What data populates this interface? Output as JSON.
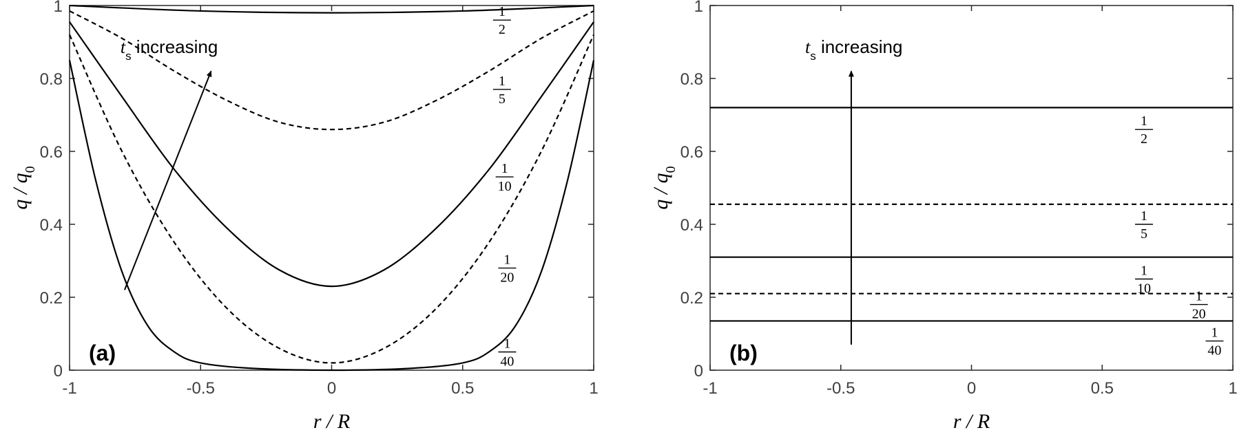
{
  "chart_data": [
    {
      "type": "line",
      "panel_label": "(a)",
      "xlabel": "r / R",
      "ylabel": "q / q0",
      "xlim": [
        -1,
        1
      ],
      "ylim": [
        0,
        1
      ],
      "xticks": [
        "-1",
        "-0.5",
        "0",
        "0.5",
        "1"
      ],
      "yticks": [
        "0",
        "0.2",
        "0.4",
        "0.6",
        "0.8",
        "1"
      ],
      "annotation": {
        "symbol": "t",
        "subscript": "s",
        "text": "increasing",
        "arrow_from": [
          -0.79,
          0.22
        ],
        "arrow_to": [
          -0.46,
          0.82
        ]
      },
      "series": [
        {
          "name": "1/2",
          "dash": "solid",
          "x": [
            -1,
            -0.5,
            0,
            0.5,
            1
          ],
          "y": [
            1.0,
            0.985,
            0.98,
            0.985,
            1.0
          ],
          "label": {
            "num": "1",
            "den": "2",
            "at": [
              0.65,
              0.96
            ]
          }
        },
        {
          "name": "1/5",
          "dash": "dashed",
          "x": [
            -1,
            -0.8,
            -0.6,
            -0.4,
            -0.2,
            0,
            0.2,
            0.4,
            0.6,
            0.8,
            1
          ],
          "y": [
            0.985,
            0.91,
            0.82,
            0.74,
            0.68,
            0.66,
            0.68,
            0.74,
            0.82,
            0.91,
            0.985
          ],
          "label": {
            "num": "1",
            "den": "5",
            "at": [
              0.65,
              0.77
            ]
          }
        },
        {
          "name": "1/10",
          "dash": "solid",
          "x": [
            -1,
            -0.8,
            -0.6,
            -0.4,
            -0.2,
            0,
            0.2,
            0.4,
            0.6,
            0.8,
            1
          ],
          "y": [
            0.955,
            0.75,
            0.55,
            0.39,
            0.275,
            0.23,
            0.275,
            0.39,
            0.55,
            0.75,
            0.955
          ],
          "label": {
            "num": "1",
            "den": "10",
            "at": [
              0.66,
              0.53
            ]
          }
        },
        {
          "name": "1/20",
          "dash": "dashed",
          "x": [
            -1,
            -0.8,
            -0.6,
            -0.4,
            -0.2,
            0,
            0.2,
            0.4,
            0.6,
            0.8,
            1
          ],
          "y": [
            0.92,
            0.6,
            0.35,
            0.17,
            0.06,
            0.02,
            0.06,
            0.17,
            0.35,
            0.6,
            0.92
          ],
          "label": {
            "num": "1",
            "den": "20",
            "at": [
              0.67,
              0.28
            ]
          }
        },
        {
          "name": "1/40",
          "dash": "solid",
          "x": [
            -1,
            -0.9,
            -0.8,
            -0.7,
            -0.6,
            -0.5,
            -0.3,
            0,
            0.3,
            0.5,
            0.6,
            0.7,
            0.8,
            0.9,
            1
          ],
          "y": [
            0.85,
            0.52,
            0.27,
            0.12,
            0.05,
            0.02,
            0.005,
            0.0,
            0.005,
            0.02,
            0.05,
            0.12,
            0.27,
            0.52,
            0.85
          ],
          "label": {
            "num": "1",
            "den": "40",
            "at": [
              0.67,
              0.05
            ]
          }
        }
      ]
    },
    {
      "type": "line",
      "panel_label": "(b)",
      "xlabel": "r / R",
      "ylabel": "q / q0",
      "xlim": [
        -1,
        1
      ],
      "ylim": [
        0,
        1
      ],
      "xticks": [
        "-1",
        "-0.5",
        "0",
        "0.5",
        "1"
      ],
      "yticks": [
        "0",
        "0.2",
        "0.4",
        "0.6",
        "0.8",
        "1"
      ],
      "annotation": {
        "symbol": "t",
        "subscript": "s",
        "text": "increasing",
        "arrow_from": [
          -0.46,
          0.07
        ],
        "arrow_to": [
          -0.46,
          0.82
        ]
      },
      "series": [
        {
          "name": "1/2",
          "dash": "solid",
          "x": [
            -1,
            1
          ],
          "y": [
            0.72,
            0.72
          ],
          "label": {
            "num": "1",
            "den": "2",
            "at": [
              0.66,
              0.66
            ]
          }
        },
        {
          "name": "1/5",
          "dash": "dashed",
          "x": [
            -1,
            1
          ],
          "y": [
            0.455,
            0.455
          ],
          "label": {
            "num": "1",
            "den": "5",
            "at": [
              0.66,
              0.4
            ]
          }
        },
        {
          "name": "1/10",
          "dash": "solid",
          "x": [
            -1,
            1
          ],
          "y": [
            0.31,
            0.31
          ],
          "label": {
            "num": "1",
            "den": "10",
            "at": [
              0.66,
              0.25
            ]
          }
        },
        {
          "name": "1/20",
          "dash": "dashed",
          "x": [
            -1,
            1
          ],
          "y": [
            0.21,
            0.21
          ],
          "label": {
            "num": "1",
            "den": "20",
            "at": [
              0.87,
              0.18
            ]
          }
        },
        {
          "name": "1/40",
          "dash": "solid",
          "x": [
            -1,
            1
          ],
          "y": [
            0.135,
            0.135
          ],
          "label": {
            "num": "1",
            "den": "40",
            "at": [
              0.93,
              0.08
            ]
          }
        }
      ]
    }
  ]
}
